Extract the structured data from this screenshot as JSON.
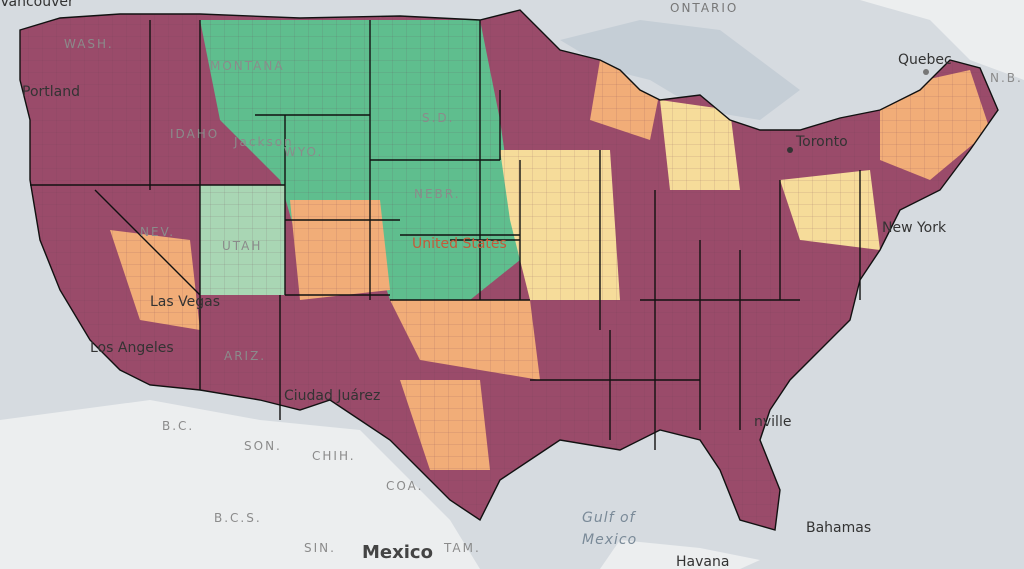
{
  "map": {
    "colors": {
      "water": "#aab6c4",
      "land": "#eef0f1",
      "band_maroon": "#9a4b6a",
      "band_orange": "#f1ad78",
      "band_yellow": "#f6dc9a",
      "band_green": "#5fbe8e",
      "band_lightgreen": "#a9d6b4",
      "state_border": "#111111"
    },
    "labels": {
      "ontario": "ONTARIO",
      "quebec": "Quebec",
      "nb": "N.B.",
      "toronto": "Toronto",
      "new_york": "New York",
      "vancouver": "Vancouver",
      "portland": "Portland",
      "los_angeles": "Los Angeles",
      "las_vegas": "Las Vegas",
      "ciudad_juarez": "Ciudad Juárez",
      "united_states": "United States",
      "bc": "B.C.",
      "son": "SON.",
      "chih": "CHIH.",
      "coa": "COA.",
      "bcs": "B.C.S.",
      "sin": "SIN.",
      "tam": "TAM.",
      "mexico": "Mexico",
      "gulf_of_mexico_1": "Gulf of",
      "gulf_of_mexico_2": "Mexico",
      "havana": "Havana",
      "bahamas": "Bahamas",
      "jacksonville": "nville",
      "washington": "WASH.",
      "montana": "MONTANA",
      "idaho": "IDAHO",
      "nevada": "NEV.",
      "utah": "UTAH",
      "arizona": "ARIZ.",
      "wyoming": "WYO.",
      "jackson": "Jackson",
      "nebraska": "NEBR.",
      "sd": "S.D."
    }
  }
}
